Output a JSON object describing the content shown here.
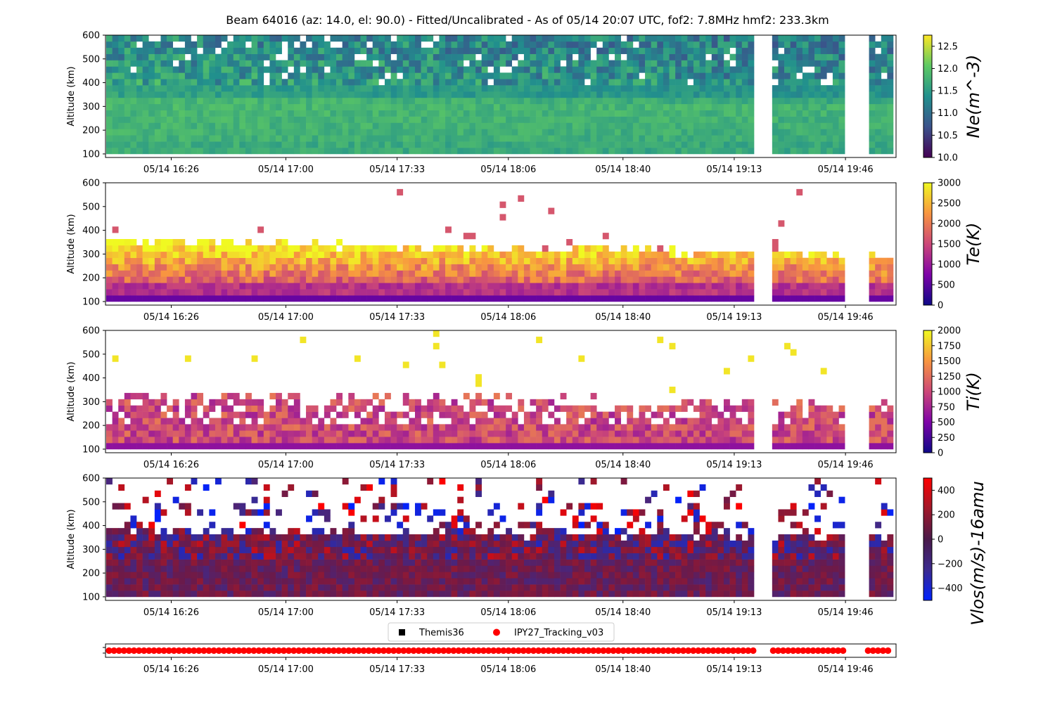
{
  "title": "Beam 64016 (az: 14.0, el: 90.0) - Fitted/Uncalibrated - As of 05/14 20:07 UTC, fof2: 7.8MHz  hmf2: 233.3km",
  "x_ticks": [
    "05/14 16:26",
    "05/14 17:00",
    "05/14 17:33",
    "05/14 18:06",
    "05/14 18:40",
    "05/14 19:13",
    "05/14 19:46"
  ],
  "y_ticks": [
    "100",
    "200",
    "300",
    "400",
    "500",
    "600"
  ],
  "legend": {
    "items": [
      {
        "label": "Themis36",
        "marker": "square",
        "color": "#000000"
      },
      {
        "label": "IPY27_Tracking_v03",
        "marker": "circle",
        "color": "#ff0000"
      }
    ]
  },
  "chart_data": [
    {
      "type": "heatmap",
      "name": "Ne",
      "ylabel": "Altitude (km)",
      "colorbar_label": "Ne(m^-3)",
      "colormap": "viridis",
      "clim": [
        10.0,
        12.75
      ],
      "colorbar_ticks": [
        "10.0",
        "10.5",
        "11.0",
        "11.5",
        "12.0",
        "12.5"
      ],
      "ylim": [
        100,
        600
      ],
      "data_gaps": [
        "~19:23–19:27",
        "~19:46–19:52"
      ]
    },
    {
      "type": "heatmap",
      "name": "Te",
      "ylabel": "Altitude (km)",
      "colorbar_label": "Te(K)",
      "colormap": "plasma",
      "clim": [
        0,
        3000
      ],
      "colorbar_ticks": [
        "0",
        "500",
        "1000",
        "1500",
        "2000",
        "2500",
        "3000"
      ],
      "ylim": [
        100,
        600
      ]
    },
    {
      "type": "heatmap",
      "name": "Ti",
      "ylabel": "Altitude (km)",
      "colorbar_label": "Ti(K)",
      "colormap": "plasma",
      "clim": [
        0,
        2000
      ],
      "colorbar_ticks": [
        "0",
        "250",
        "500",
        "750",
        "1000",
        "1250",
        "1500",
        "1750",
        "2000"
      ],
      "ylim": [
        100,
        600
      ]
    },
    {
      "type": "heatmap",
      "name": "Vlos",
      "ylabel": "Altitude (km)",
      "colorbar_label": "Vlos(m/s)-16amu",
      "colormap": "blue-darkred-red",
      "clim": [
        -500,
        500
      ],
      "colorbar_ticks": [
        "400",
        "200",
        "0",
        "−200",
        "−400"
      ],
      "ylim": [
        100,
        600
      ]
    },
    {
      "type": "scatter",
      "name": "tracking",
      "series": [
        {
          "name": "IPY27_Tracking_v03",
          "color": "#ff0000"
        }
      ]
    }
  ],
  "colors": {
    "viridis": [
      "#440154",
      "#3b528b",
      "#21908d",
      "#5dc963",
      "#fde725"
    ],
    "plasma": [
      "#0d0887",
      "#7e03a8",
      "#cc4778",
      "#f89540",
      "#f0f921"
    ],
    "vlos": [
      "#0022ff",
      "#3b2a8f",
      "#6b1a4a",
      "#a0182a",
      "#ff0000"
    ]
  }
}
